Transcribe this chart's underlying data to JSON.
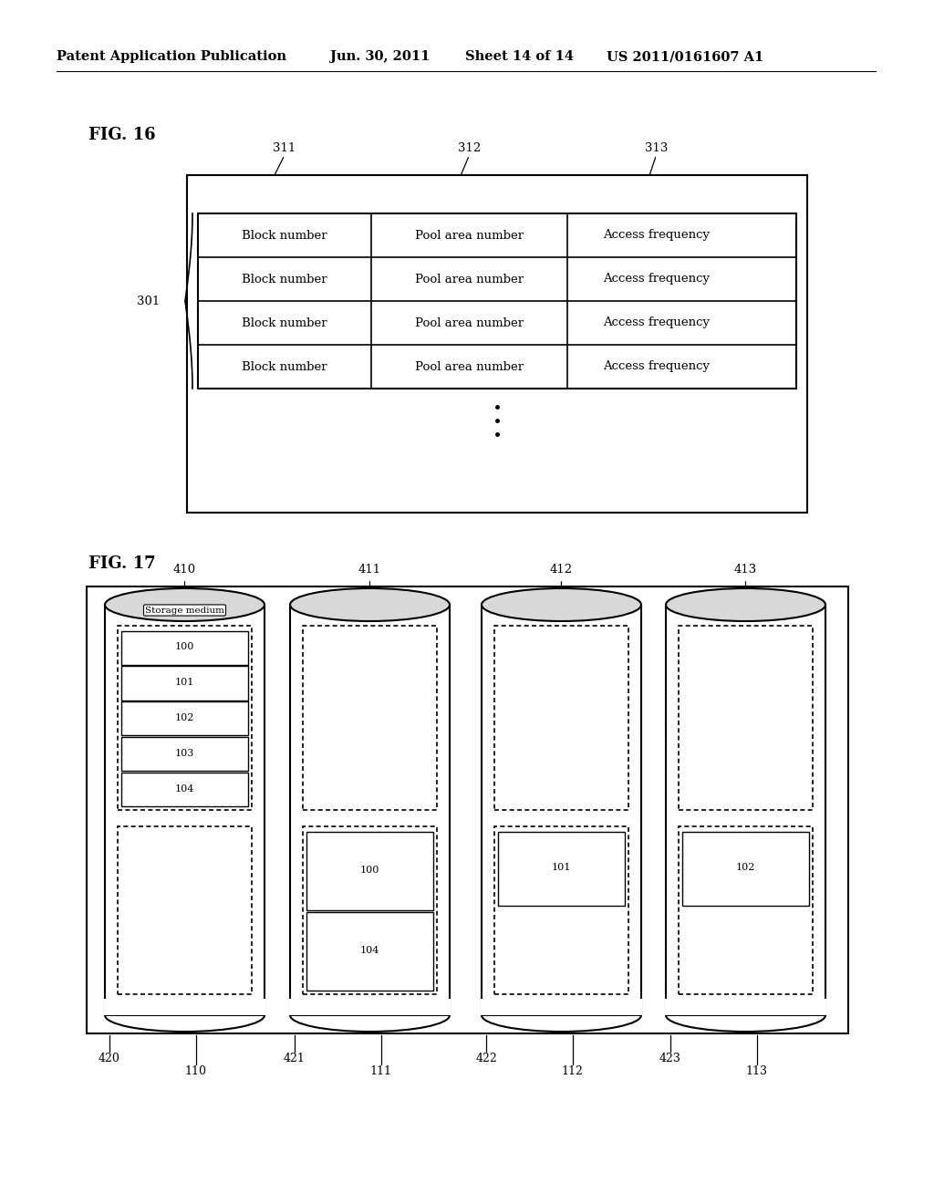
{
  "bg_color": "#ffffff",
  "header_text": "Patent Application Publication",
  "header_date": "Jun. 30, 2011",
  "header_sheet": "Sheet 14 of 14",
  "header_patent": "US 2011/0161607 A1",
  "fig16_label": "FIG. 16",
  "fig17_label": "FIG. 17",
  "table_cols": [
    "Block number",
    "Pool area number",
    "Access frequency"
  ],
  "table_col_labels": [
    "311",
    "312",
    "313"
  ],
  "table_rows": 4,
  "table_ref": "301",
  "cyl_top_labels": [
    "410",
    "411",
    "412",
    "413"
  ],
  "cyl_bot_left_labels": [
    "420",
    "421",
    "422",
    "423"
  ],
  "cyl_bot_mid_labels": [
    "110",
    "111",
    "112",
    "113"
  ],
  "cyl0_top_blocks": [
    "100",
    "101",
    "102",
    "103",
    "104"
  ],
  "cyl1_bot_blocks": [
    "100",
    "104"
  ],
  "cyl2_bot_blocks": [
    "101"
  ],
  "cyl3_bot_blocks": [
    "102"
  ],
  "storage_medium_label": "Storage medium"
}
